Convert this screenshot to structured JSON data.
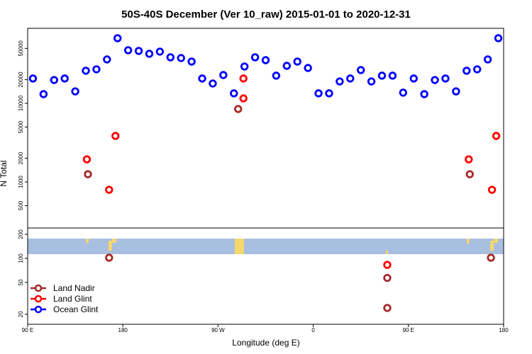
{
  "chart_data": [
    {
      "type": "scatter",
      "title": "50S-40S December (Ver 10_raw)   2015-01-01 to 2020-12-31",
      "ylabel": "N Total",
      "xlim": [
        90,
        540
      ],
      "ylim": [
        260,
        90000
      ],
      "log_y": true,
      "yticks": [
        500,
        1000,
        2000,
        5000,
        10000,
        20000,
        50000
      ],
      "series": [
        {
          "color": "#a52a2a",
          "x": [
            147,
            289,
            508
          ],
          "values": [
            1256,
            8470,
            1256
          ]
        },
        {
          "color": "#ff0000",
          "x": [
            146,
            167,
            173,
            294,
            294,
            507,
            529,
            533
          ],
          "values": [
            1940,
            796,
            3850,
            11560,
            20700,
            1940,
            796,
            3850
          ]
        },
        {
          "color": "#0000ff",
          "x": [
            95,
            105,
            115,
            125,
            135,
            145,
            155,
            165,
            175,
            185,
            195,
            205,
            215,
            225,
            235,
            245,
            255,
            265,
            275,
            285,
            295,
            305,
            315,
            325,
            335,
            345,
            355,
            365,
            375,
            385,
            395,
            405,
            415,
            425,
            435,
            445,
            455,
            465,
            475,
            485,
            495,
            505,
            515,
            525,
            535
          ],
          "values": [
            20700,
            13100,
            19800,
            20700,
            14200,
            26000,
            27100,
            36200,
            67400,
            47400,
            46400,
            42700,
            45500,
            38500,
            37700,
            34000,
            20700,
            17900,
            22900,
            13400,
            29400,
            38500,
            35400,
            22500,
            30000,
            34000,
            28200,
            13400,
            13400,
            19000,
            20700,
            26500,
            19000,
            22500,
            22500,
            13700,
            20700,
            13100,
            19800,
            20700,
            14200,
            26000,
            27100,
            36200,
            67400
          ]
        }
      ]
    },
    {
      "type": "scatter",
      "xlabel": "Longitude (deg E)",
      "xlim": [
        90,
        540
      ],
      "ylim": [
        15,
        240
      ],
      "log_y": true,
      "yticks": [
        20,
        50,
        100,
        200
      ],
      "xticks": [
        {
          "value": 90,
          "label": "90 E"
        },
        180,
        {
          "value": 270,
          "label": "90 W"
        },
        {
          "value": 360,
          "label": "0"
        },
        {
          "value": 450,
          "label": "90 E"
        },
        {
          "value": 540,
          "label": "180"
        }
      ],
      "legend": "bottom-left",
      "series": [
        {
          "name": "Land Nadir",
          "color": "#a52a2a",
          "x": [
            167,
            430,
            430,
            528
          ],
          "values": [
            102,
            57,
            24,
            102
          ]
        },
        {
          "name": "Land Glint",
          "color": "#ff0000",
          "x": [
            430
          ],
          "values": [
            83
          ]
        },
        {
          "name": "Ocean Glint",
          "color": "#0000ff",
          "x": [],
          "values": []
        }
      ]
    }
  ]
}
